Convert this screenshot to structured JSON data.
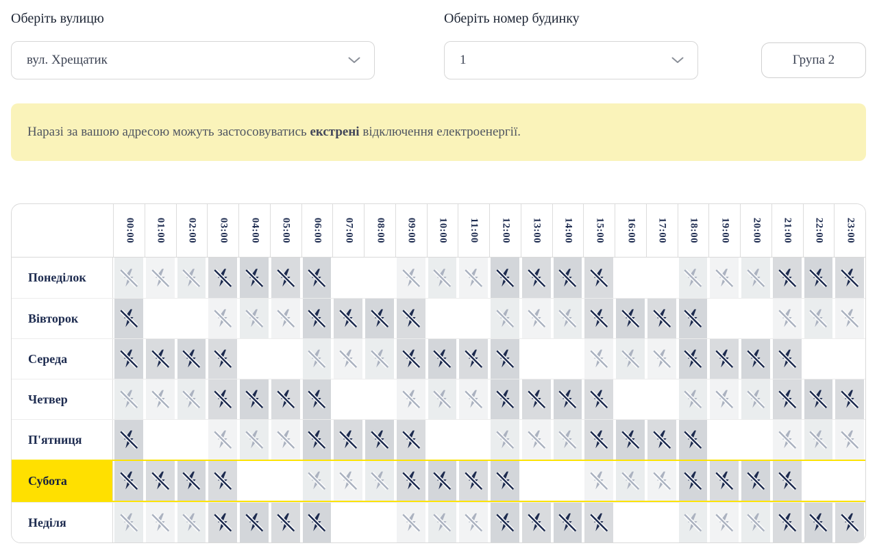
{
  "controls": {
    "street_label": "Оберіть вулицю",
    "street_value": "вул. Хрещатик",
    "house_label": "Оберіть номер будинку",
    "house_value": "1",
    "group_badge": "Група 2"
  },
  "banner": {
    "text_before": "Наразі за вашою адресою можуть застосовуватись ",
    "bold_word": "екстрені",
    "text_after": " відключення електроенергії."
  },
  "icons": {
    "dropdown": "chevron-down-icon",
    "cell": "crossed-lightning-icon"
  },
  "colors": {
    "accent_yellow": "#ffe000",
    "current_day_border": "#fce303",
    "banner_bg": "#faf3ba",
    "navy": "#1d2b4f",
    "possible_icon": "#abb2c0",
    "cell_dark_bg": "#d3d6da",
    "cell_light_bg": "#eaedee",
    "table_border": "#d9d9d9"
  },
  "schedule": {
    "hours": [
      "00:00",
      "01:00",
      "02:00",
      "03:00",
      "04:00",
      "05:00",
      "06:00",
      "07:00",
      "08:00",
      "09:00",
      "10:00",
      "11:00",
      "12:00",
      "13:00",
      "14:00",
      "15:00",
      "16:00",
      "17:00",
      "18:00",
      "19:00",
      "20:00",
      "21:00",
      "22:00",
      "23:00"
    ],
    "state_legend": {
      "0": "no_outage",
      "1": "possible_outage",
      "2": "scheduled_outage"
    },
    "days": [
      {
        "label": "Понеділок",
        "current": false,
        "cells": [
          1,
          1,
          1,
          2,
          2,
          2,
          2,
          0,
          0,
          1,
          1,
          1,
          2,
          2,
          2,
          2,
          0,
          0,
          1,
          1,
          1,
          2,
          2,
          2
        ]
      },
      {
        "label": "Вівторок",
        "current": false,
        "cells": [
          2,
          0,
          0,
          1,
          1,
          1,
          2,
          2,
          2,
          2,
          0,
          0,
          1,
          1,
          1,
          2,
          2,
          2,
          2,
          0,
          0,
          1,
          1,
          1
        ]
      },
      {
        "label": "Середа",
        "current": false,
        "cells": [
          2,
          2,
          2,
          2,
          0,
          0,
          1,
          1,
          1,
          2,
          2,
          2,
          2,
          0,
          0,
          1,
          1,
          1,
          2,
          2,
          2,
          2,
          0,
          0
        ]
      },
      {
        "label": "Четвер",
        "current": false,
        "cells": [
          1,
          1,
          1,
          2,
          2,
          2,
          2,
          0,
          0,
          1,
          1,
          1,
          2,
          2,
          2,
          2,
          0,
          0,
          1,
          1,
          1,
          2,
          2,
          2
        ]
      },
      {
        "label": "П'ятниця",
        "current": false,
        "cells": [
          2,
          0,
          0,
          1,
          1,
          1,
          2,
          2,
          2,
          2,
          0,
          0,
          1,
          1,
          1,
          2,
          2,
          2,
          2,
          0,
          0,
          1,
          1,
          1
        ]
      },
      {
        "label": "Субота",
        "current": true,
        "cells": [
          2,
          2,
          2,
          2,
          0,
          0,
          1,
          1,
          1,
          2,
          2,
          2,
          2,
          0,
          0,
          1,
          1,
          1,
          2,
          2,
          2,
          2,
          0,
          0
        ]
      },
      {
        "label": "Неділя",
        "current": false,
        "cells": [
          1,
          1,
          1,
          2,
          2,
          2,
          2,
          0,
          0,
          1,
          1,
          1,
          2,
          2,
          2,
          2,
          0,
          0,
          1,
          1,
          1,
          2,
          2,
          2
        ]
      }
    ]
  }
}
